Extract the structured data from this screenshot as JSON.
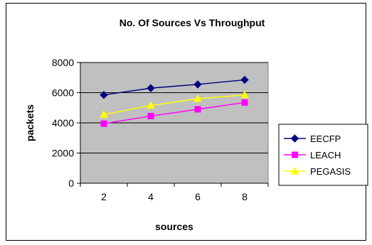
{
  "chart_data": {
    "type": "line",
    "title": "No. Of Sources Vs Throughput",
    "xlabel": "sources",
    "ylabel": "packets",
    "x": [
      2,
      4,
      6,
      8
    ],
    "ylim": [
      0,
      8000
    ],
    "yticks": [
      0,
      2000,
      4000,
      6000,
      8000
    ],
    "grid": true,
    "plot_background": "#C0C0C0",
    "legend_position": "right",
    "series": [
      {
        "name": "EECFP",
        "values": [
          5850,
          6300,
          6550,
          6850
        ],
        "color": "#000080",
        "marker": "diamond"
      },
      {
        "name": "LEACH",
        "values": [
          3950,
          4450,
          4900,
          5350
        ],
        "color": "#FF00FF",
        "marker": "square"
      },
      {
        "name": "PEGASIS",
        "values": [
          4550,
          5150,
          5600,
          5850
        ],
        "color": "#FFFF00",
        "marker": "triangle"
      }
    ]
  }
}
